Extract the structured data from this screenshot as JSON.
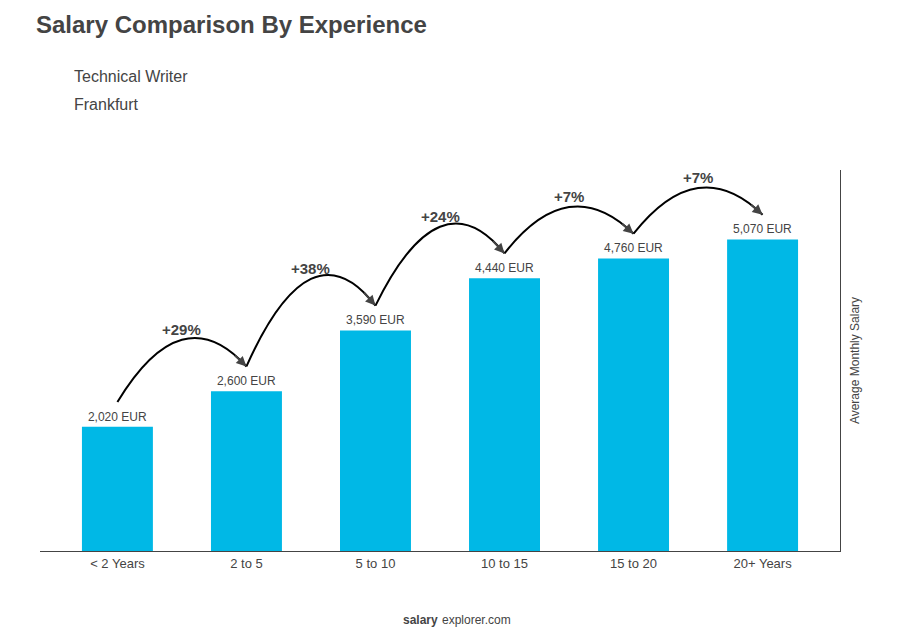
{
  "chart_data": {
    "type": "bar",
    "title": "Salary Comparison By Experience",
    "subtitle": [
      "Technical Writer",
      "Frankfurt"
    ],
    "categories": [
      "< 2 Years",
      "2 to 5",
      "5 to 10",
      "10 to 15",
      "15 to 20",
      "20+ Years"
    ],
    "values": [
      2020,
      2600,
      3590,
      4440,
      4760,
      5070
    ],
    "value_labels": [
      "2,020 EUR",
      "2,600 EUR",
      "3,590 EUR",
      "4,440 EUR",
      "4,760 EUR",
      "5,070 EUR"
    ],
    "data_labels": true,
    "color": "#00b8e6",
    "ylabel": "Average Monthly Salary",
    "ylim": [
      0,
      6200
    ],
    "tick_labels": "x",
    "grid": false,
    "annotations": [
      {
        "category": "2 to 5",
        "text": "+29%"
      },
      {
        "category": "5 to 10",
        "text": "+38%"
      },
      {
        "category": "10 to 15",
        "text": "+24%"
      },
      {
        "category": "15 to 20",
        "text": "+7%"
      },
      {
        "category": "20+ Years",
        "text": "+7%"
      }
    ],
    "footer": [
      "salary",
      "explorer.com"
    ]
  }
}
